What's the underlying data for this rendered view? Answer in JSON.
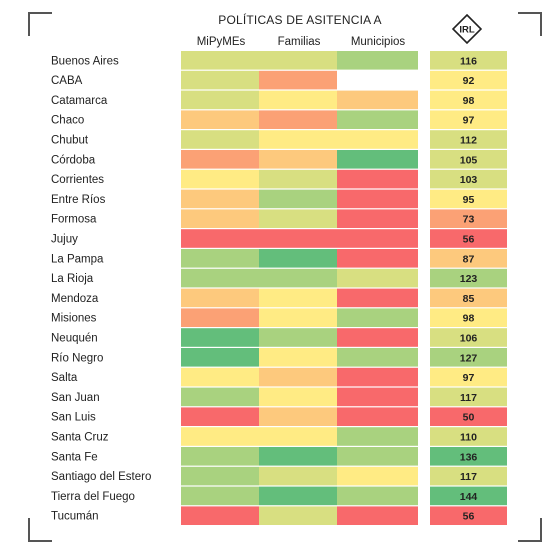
{
  "title": "POLÍTICAS DE ASITENCIA A",
  "columns": [
    "MiPyMEs",
    "Familias",
    "Municipios"
  ],
  "irl_label": "IRL",
  "colors": {
    "green": "#63be7b",
    "light_green": "#a9d27f",
    "yellow_green": "#d8df81",
    "yellow": "#ffeb84",
    "light_orange": "#fdc97d",
    "orange": "#fba175",
    "red": "#f8696b",
    "none": "#ffffff"
  },
  "chart_data": {
    "type": "heatmap",
    "title": "POLÍTICAS DE ASITENCIA A",
    "columns": [
      "MiPyMEs",
      "Familias",
      "Municipios",
      "IRL"
    ],
    "rows": [
      {
        "name": "Buenos Aires",
        "cells": [
          "yellow_green",
          "yellow_green",
          "light_green",
          "yellow_green"
        ],
        "irl": 116
      },
      {
        "name": "CABA",
        "cells": [
          "yellow_green",
          "orange",
          "none",
          "yellow"
        ],
        "irl": 92
      },
      {
        "name": "Catamarca",
        "cells": [
          "yellow_green",
          "yellow",
          "light_orange",
          "yellow"
        ],
        "irl": 98
      },
      {
        "name": "Chaco",
        "cells": [
          "light_orange",
          "orange",
          "light_green",
          "yellow"
        ],
        "irl": 97
      },
      {
        "name": "Chubut",
        "cells": [
          "yellow_green",
          "yellow",
          "yellow",
          "yellow_green"
        ],
        "irl": 112
      },
      {
        "name": "Córdoba",
        "cells": [
          "orange",
          "light_orange",
          "green",
          "yellow_green"
        ],
        "irl": 105
      },
      {
        "name": "Corrientes",
        "cells": [
          "yellow",
          "yellow_green",
          "red",
          "yellow_green"
        ],
        "irl": 103
      },
      {
        "name": "Entre Ríos",
        "cells": [
          "light_orange",
          "light_green",
          "red",
          "yellow"
        ],
        "irl": 95
      },
      {
        "name": "Formosa",
        "cells": [
          "light_orange",
          "yellow_green",
          "red",
          "orange"
        ],
        "irl": 73
      },
      {
        "name": "Jujuy",
        "cells": [
          "red",
          "red",
          "red",
          "red"
        ],
        "irl": 56
      },
      {
        "name": "La Pampa",
        "cells": [
          "light_green",
          "green",
          "red",
          "light_orange"
        ],
        "irl": 87
      },
      {
        "name": "La Rioja",
        "cells": [
          "light_green",
          "light_green",
          "yellow_green",
          "light_green"
        ],
        "irl": 123
      },
      {
        "name": "Mendoza",
        "cells": [
          "light_orange",
          "yellow",
          "red",
          "light_orange"
        ],
        "irl": 85
      },
      {
        "name": "Misiones",
        "cells": [
          "orange",
          "yellow",
          "light_green",
          "yellow"
        ],
        "irl": 98
      },
      {
        "name": "Neuquén",
        "cells": [
          "green",
          "light_green",
          "red",
          "yellow_green"
        ],
        "irl": 106
      },
      {
        "name": "Río Negro",
        "cells": [
          "green",
          "yellow",
          "light_green",
          "light_green"
        ],
        "irl": 127
      },
      {
        "name": "Salta",
        "cells": [
          "yellow",
          "light_orange",
          "red",
          "yellow"
        ],
        "irl": 97
      },
      {
        "name": "San Juan",
        "cells": [
          "light_green",
          "yellow",
          "red",
          "yellow_green"
        ],
        "irl": 117
      },
      {
        "name": "San Luis",
        "cells": [
          "red",
          "light_orange",
          "red",
          "red"
        ],
        "irl": 50
      },
      {
        "name": "Santa Cruz",
        "cells": [
          "yellow",
          "yellow",
          "light_green",
          "yellow_green"
        ],
        "irl": 110
      },
      {
        "name": "Santa Fe",
        "cells": [
          "light_green",
          "green",
          "light_green",
          "green"
        ],
        "irl": 136
      },
      {
        "name": "Santiago del Estero",
        "cells": [
          "light_green",
          "yellow_green",
          "yellow",
          "yellow_green"
        ],
        "irl": 117
      },
      {
        "name": "Tierra del Fuego",
        "cells": [
          "light_green",
          "green",
          "light_green",
          "green"
        ],
        "irl": 144
      },
      {
        "name": "Tucumán",
        "cells": [
          "red",
          "yellow_green",
          "red",
          "red"
        ],
        "irl": 56
      }
    ]
  }
}
